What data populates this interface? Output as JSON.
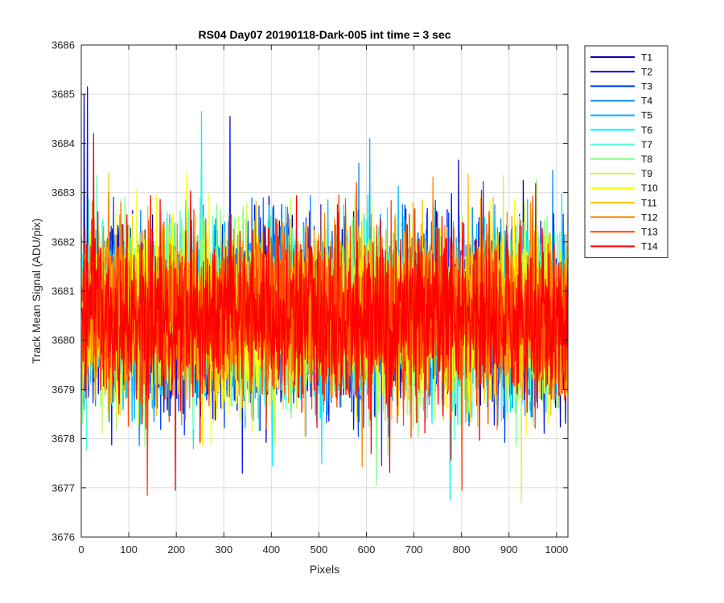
{
  "chart_data": {
    "type": "line",
    "title": "RS04 Day07 20190118-Dark-005 int time = 3 sec",
    "xlabel": "Pixels",
    "ylabel": "Track Mean Signal (ADU/pix)",
    "xlim": [
      0,
      1024
    ],
    "ylim": [
      3676,
      3686
    ],
    "xticks": [
      0,
      100,
      200,
      300,
      400,
      500,
      600,
      700,
      800,
      900,
      1000
    ],
    "yticks": [
      3676,
      3677,
      3678,
      3679,
      3680,
      3681,
      3682,
      3683,
      3684,
      3685,
      3686
    ],
    "grid": true,
    "legend_location": "outside-top-right",
    "noise_approx": {
      "mean": 3680.5,
      "std": 0.85
    },
    "series": [
      {
        "name": "T1",
        "color": "#0000b3"
      },
      {
        "name": "T2",
        "color": "#0011e6"
      },
      {
        "name": "T3",
        "color": "#0044ff"
      },
      {
        "name": "T4",
        "color": "#0088ff"
      },
      {
        "name": "T5",
        "color": "#00b8ff"
      },
      {
        "name": "T6",
        "color": "#00f0ff"
      },
      {
        "name": "T7",
        "color": "#4dffd0"
      },
      {
        "name": "T8",
        "color": "#80ff80"
      },
      {
        "name": "T9",
        "color": "#c0ff40"
      },
      {
        "name": "T10",
        "color": "#ffff00"
      },
      {
        "name": "T11",
        "color": "#ffc400"
      },
      {
        "name": "T12",
        "color": "#ff8800"
      },
      {
        "name": "T13",
        "color": "#ff4400"
      },
      {
        "name": "T14",
        "color": "#ff0000"
      }
    ],
    "annotations": [
      {
        "series": "T2",
        "x": 12,
        "y": 3685.15
      },
      {
        "series": "T1",
        "x": 5,
        "y": 3685.0
      },
      {
        "series": "T6",
        "x": 252,
        "y": 3684.65
      },
      {
        "series": "T2",
        "x": 312,
        "y": 3684.55
      },
      {
        "series": "T14",
        "x": 25,
        "y": 3684.2
      },
      {
        "series": "T5",
        "x": 606,
        "y": 3684.1
      },
      {
        "series": "T13",
        "x": 138,
        "y": 3676.85
      },
      {
        "series": "T14",
        "x": 197,
        "y": 3676.95
      },
      {
        "series": "T8",
        "x": 620,
        "y": 3677.05
      },
      {
        "series": "T6",
        "x": 775,
        "y": 3676.75
      },
      {
        "series": "T13",
        "x": 800,
        "y": 3676.95
      },
      {
        "series": "T9",
        "x": 925,
        "y": 3676.7
      },
      {
        "series": "T2",
        "x": 338,
        "y": 3677.3
      }
    ]
  }
}
